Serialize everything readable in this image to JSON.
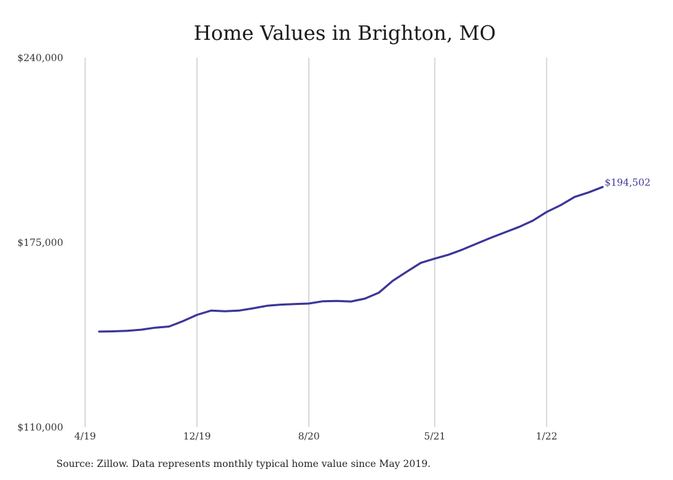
{
  "chart_data": {
    "type": "line",
    "title": "Home Values in Brighton, MO",
    "xlabel": "",
    "ylabel": "",
    "ylim": [
      110000,
      240000
    ],
    "yticks": [
      {
        "value": 110000,
        "label": "$110,000"
      },
      {
        "value": 175000,
        "label": "$175,000"
      },
      {
        "value": 240000,
        "label": "$240,000"
      }
    ],
    "xticks": [
      {
        "value": "2019-04",
        "label": "4/19"
      },
      {
        "value": "2019-12",
        "label": "12/19"
      },
      {
        "value": "2020-08",
        "label": "8/20"
      },
      {
        "value": "2021-05",
        "label": "5/21"
      },
      {
        "value": "2022-01",
        "label": "1/22"
      }
    ],
    "grid": "vertical",
    "x": [
      "2019-05",
      "2019-06",
      "2019-07",
      "2019-08",
      "2019-09",
      "2019-10",
      "2019-11",
      "2019-12",
      "2020-01",
      "2020-02",
      "2020-03",
      "2020-04",
      "2020-05",
      "2020-06",
      "2020-07",
      "2020-08",
      "2020-09",
      "2020-10",
      "2020-11",
      "2020-12",
      "2021-01",
      "2021-02",
      "2021-03",
      "2021-04",
      "2021-05",
      "2021-06",
      "2021-07",
      "2021-08",
      "2021-09",
      "2021-10",
      "2021-11",
      "2021-12",
      "2022-01",
      "2022-02",
      "2022-03",
      "2022-04",
      "2022-05"
    ],
    "series": [
      {
        "color": "#3b3598",
        "values": [
          143600,
          143700,
          143900,
          144300,
          145000,
          145400,
          147300,
          149500,
          151000,
          150800,
          151000,
          151800,
          152700,
          153100,
          153300,
          153500,
          154300,
          154400,
          154200,
          155200,
          157300,
          161500,
          164700,
          167800,
          169300,
          170700,
          172500,
          174600,
          176600,
          178500,
          180400,
          182600,
          185700,
          188100,
          191000,
          192600,
          194502
        ]
      }
    ],
    "end_label": "$194,502",
    "source": "Source: Zillow. Data represents monthly typical home value since May 2019."
  }
}
